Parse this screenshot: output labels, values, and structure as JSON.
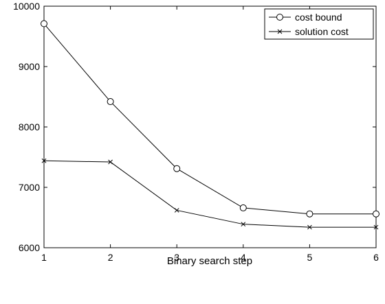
{
  "chart_data": {
    "type": "line",
    "xlabel": "Binary search step",
    "ylabel": "",
    "x": [
      1,
      2,
      3,
      4,
      5,
      6
    ],
    "xlim": [
      1,
      6
    ],
    "ylim": [
      6000,
      10000
    ],
    "xticks": [
      "1",
      "2",
      "3",
      "4",
      "5",
      "6"
    ],
    "yticks": [
      "6000",
      "7000",
      "8000",
      "9000",
      "10000"
    ],
    "grid": false,
    "legend_position": "top-right",
    "series": [
      {
        "name": "cost bound",
        "marker": "circle",
        "color": "#000000",
        "values": [
          9710,
          8420,
          7310,
          6660,
          6560,
          6560
        ]
      },
      {
        "name": "solution cost",
        "marker": "x",
        "color": "#000000",
        "values": [
          7440,
          7420,
          6620,
          6390,
          6340,
          6340
        ]
      }
    ]
  }
}
